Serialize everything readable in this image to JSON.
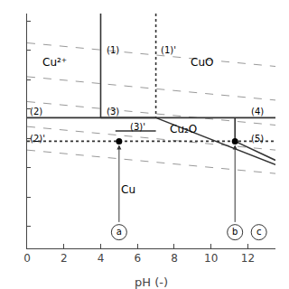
{
  "chart_data": {
    "type": "line",
    "xlabel": "pH (-)",
    "xlim": [
      0,
      13.5
    ],
    "ylim": [
      -0.55,
      1.05
    ],
    "xticks": [
      0,
      2,
      4,
      6,
      8,
      10,
      12
    ],
    "yticks": [
      -0.4,
      -0.2,
      0.0,
      0.2,
      0.4,
      0.6,
      0.8,
      1.0
    ],
    "tick_labels": "x",
    "grid": false,
    "series": [
      {
        "x": [
          0,
          13.5
        ],
        "values": [
          0.85,
          0.69
        ],
        "line_style": "dashed",
        "color": "#999999"
      },
      {
        "x": [
          0,
          13.5
        ],
        "values": [
          0.62,
          0.46
        ],
        "line_style": "dashed",
        "color": "#999999"
      },
      {
        "x": [
          0,
          13.5
        ],
        "values": [
          0.45,
          0.29
        ],
        "line_style": "dashed",
        "color": "#999999"
      },
      {
        "x": [
          0,
          13.5
        ],
        "values": [
          0.28,
          0.12
        ],
        "line_style": "dashed",
        "color": "#999999"
      },
      {
        "x": [
          0,
          13.5
        ],
        "values": [
          0.12,
          -0.04
        ],
        "line_style": "dashed",
        "color": "#999999"
      },
      {
        "x": [
          4.0,
          4.0
        ],
        "values": [
          1.05,
          0.34
        ],
        "line_style": "solid",
        "color": "#333333"
      },
      {
        "x": [
          7.0,
          7.0
        ],
        "values": [
          1.05,
          0.34
        ],
        "line_style": "dotted",
        "color": "#333333"
      },
      {
        "x": [
          0,
          13.5
        ],
        "values": [
          0.34,
          0.34
        ],
        "line_style": "solid",
        "color": "#333333"
      },
      {
        "x": [
          0,
          13.5
        ],
        "values": [
          0.18,
          0.18
        ],
        "line_style": "dotted",
        "color": "#333333"
      },
      {
        "x": [
          4.0,
          7.0
        ],
        "values": [
          0.34,
          0.34
        ],
        "line_style": "solid",
        "color": "#333333"
      },
      {
        "x": [
          4.8,
          7.0
        ],
        "values": [
          0.25,
          0.25
        ],
        "line_style": "solid",
        "color": "#333333"
      },
      {
        "x": [
          7.0,
          13.5
        ],
        "values": [
          0.34,
          0.02
        ],
        "line_style": "solid",
        "color": "#333333"
      },
      {
        "x": [
          11.3,
          11.3
        ],
        "values": [
          0.18,
          0.34
        ],
        "line_style": "solid",
        "color": "#333333"
      },
      {
        "x": [
          11.3,
          13.5
        ],
        "values": [
          0.18,
          0.05
        ],
        "line_style": "solid",
        "color": "#333333"
      },
      {
        "type": "scatter",
        "x": [
          5.0,
          11.3
        ],
        "values": [
          0.18,
          0.18
        ],
        "marker": "circle",
        "color": "#000000"
      }
    ],
    "arrows": [
      {
        "x": 5.0,
        "from": -0.38,
        "to": 0.18
      },
      {
        "x": 11.3,
        "from": -0.38,
        "to": 0.18
      }
    ],
    "circled_labels": [
      {
        "text": "a",
        "x": 5.0,
        "y": -0.44
      },
      {
        "text": "b",
        "x": 11.3,
        "y": -0.44
      },
      {
        "text": "c",
        "x": 12.6,
        "y": -0.44
      }
    ],
    "region_labels": [
      {
        "text": "Cu²⁺",
        "x": 1.5,
        "y": 0.72
      },
      {
        "text": "CuO",
        "x": 9.5,
        "y": 0.72
      },
      {
        "text": "Cu₂O",
        "x": 8.5,
        "y": 0.26
      },
      {
        "text": "Cu",
        "x": 5.5,
        "y": -0.15
      }
    ],
    "line_labels": [
      {
        "text": "(1)",
        "x": 4.2,
        "y": 0.8
      },
      {
        "text": "(1)'",
        "x": 7.15,
        "y": 0.8
      },
      {
        "text": "(2)",
        "x": 0.05,
        "y": 0.38
      },
      {
        "text": "(2)'",
        "x": 0.05,
        "y": 0.2
      },
      {
        "text": "(3)",
        "x": 4.2,
        "y": 0.38
      },
      {
        "text": "(3)'",
        "x": 5.5,
        "y": 0.28
      },
      {
        "text": "(4)",
        "x": 12.1,
        "y": 0.38
      },
      {
        "text": "(5)",
        "x": 12.1,
        "y": 0.2
      }
    ]
  }
}
